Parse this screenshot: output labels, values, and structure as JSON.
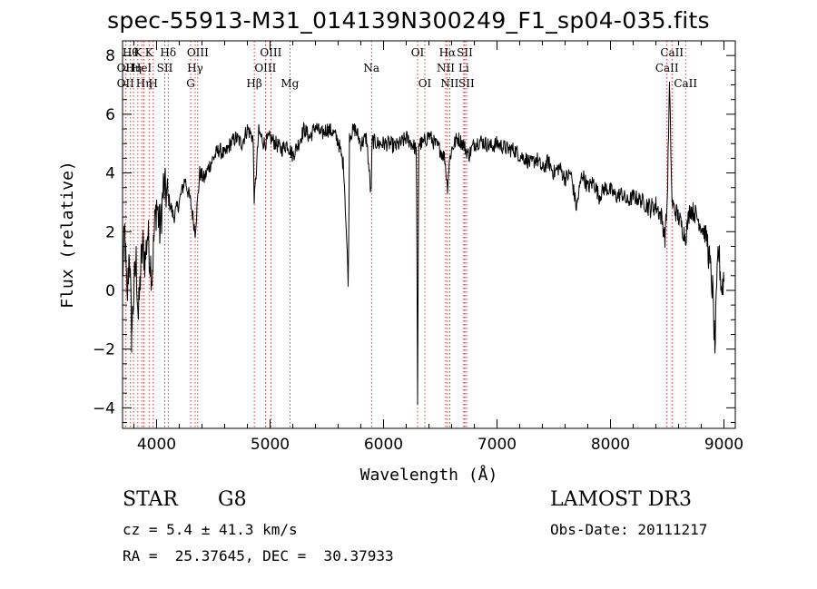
{
  "chart_data": {
    "type": "line",
    "title": "spec-55913-M31_014139N300249_F1_sp04-035.fits",
    "xlabel": "Wavelength (Å)",
    "ylabel": "Flux (relative)",
    "xlim": [
      3700,
      9100
    ],
    "ylim": [
      -4.7,
      8.5
    ],
    "xticks": [
      4000,
      5000,
      6000,
      7000,
      8000,
      9000
    ],
    "yticks": [
      -4,
      -2,
      0,
      2,
      4,
      6,
      8
    ],
    "grid": false,
    "line_color": "#000000",
    "marker_color": "#cc0000",
    "series": [
      {
        "x": [
          3700,
          3720,
          3740,
          3760,
          3780,
          3800,
          3820,
          3840,
          3860,
          3880,
          3900,
          3920,
          3940,
          3960,
          3980,
          4000,
          4030,
          4060,
          4100,
          4150,
          4200,
          4250,
          4300,
          4340,
          4380,
          4420,
          4460,
          4500,
          4550,
          4600,
          4650,
          4700,
          4750,
          4800,
          4850,
          4861,
          4900,
          4950,
          5000,
          5050,
          5100,
          5150,
          5200,
          5250,
          5300,
          5350,
          5400,
          5450,
          5500,
          5550,
          5600,
          5650,
          5690,
          5700,
          5750,
          5800,
          5850,
          5890,
          5900,
          5950,
          6000,
          6050,
          6100,
          6150,
          6200,
          6250,
          6290,
          6300,
          6310,
          6350,
          6400,
          6450,
          6500,
          6540,
          6563,
          6580,
          6600,
          6650,
          6700,
          6750,
          6800,
          6850,
          6900,
          6950,
          7000,
          7050,
          7100,
          7150,
          7200,
          7250,
          7300,
          7350,
          7400,
          7450,
          7500,
          7550,
          7600,
          7650,
          7700,
          7750,
          7800,
          7850,
          7900,
          7950,
          8000,
          8050,
          8100,
          8150,
          8200,
          8250,
          8300,
          8350,
          8400,
          8450,
          8480,
          8500,
          8520,
          8542,
          8560,
          8600,
          8662,
          8700,
          8750,
          8800,
          8850,
          8900,
          8920,
          8950,
          8980,
          9000
        ],
        "y": [
          0.5,
          2.0,
          -0.5,
          1.5,
          -1.5,
          0.0,
          1.0,
          -1.0,
          0.8,
          1.5,
          1.0,
          2.0,
          1.2,
          0.5,
          2.0,
          3.0,
          2.0,
          3.5,
          3.2,
          2.5,
          3.0,
          3.8,
          3.0,
          2.0,
          4.0,
          3.8,
          4.2,
          4.5,
          4.8,
          4.6,
          5.0,
          5.2,
          5.0,
          5.5,
          5.2,
          3.0,
          5.4,
          5.0,
          5.2,
          5.0,
          4.8,
          5.0,
          4.6,
          5.0,
          5.5,
          5.2,
          5.6,
          5.3,
          5.5,
          5.4,
          5.1,
          4.2,
          0.2,
          5.3,
          5.5,
          5.0,
          5.2,
          3.2,
          5.1,
          5.0,
          5.0,
          5.0,
          4.9,
          5.0,
          5.2,
          5.0,
          4.8,
          -3.9,
          5.0,
          5.0,
          5.3,
          5.0,
          4.8,
          4.5,
          3.5,
          4.4,
          4.8,
          5.2,
          5.0,
          4.6,
          5.0,
          5.1,
          5.0,
          4.9,
          5.0,
          4.9,
          4.8,
          4.8,
          4.6,
          4.5,
          4.3,
          4.5,
          4.1,
          4.4,
          4.0,
          4.2,
          3.8,
          4.0,
          2.8,
          4.0,
          3.5,
          3.7,
          3.2,
          3.5,
          3.4,
          3.2,
          3.3,
          3.0,
          3.2,
          3.1,
          3.0,
          2.8,
          2.9,
          2.5,
          1.8,
          3.0,
          7.0,
          3.0,
          2.8,
          2.5,
          1.8,
          2.8,
          2.6,
          2.2,
          1.8,
          0.0,
          -2.0,
          1.5,
          0.0,
          0.5
        ]
      }
    ],
    "lines": [
      {
        "x": 3726,
        "labels": [
          {
            "row": 2,
            "text": "OII"
          },
          {
            "row": 3,
            "text": "OII"
          }
        ]
      },
      {
        "x": 3770,
        "labels": [
          {
            "row": 1,
            "text": "Hθ"
          }
        ]
      },
      {
        "x": 3797,
        "labels": [
          {
            "row": 2,
            "text": "Hη"
          }
        ]
      },
      {
        "x": 3835,
        "labels": [
          {
            "row": 1,
            "text": "K"
          }
        ]
      },
      {
        "x": 3869,
        "labels": [
          {
            "row": 2,
            "text": "HeI"
          }
        ]
      },
      {
        "x": 3889,
        "labels": [
          {
            "row": 3,
            "text": "Hη"
          }
        ]
      },
      {
        "x": 3934,
        "labels": [
          {
            "row": 1,
            "text": "K"
          }
        ]
      },
      {
        "x": 3970,
        "labels": [
          {
            "row": 3,
            "text": "H"
          }
        ]
      },
      {
        "x": 4072,
        "labels": [
          {
            "row": 2,
            "text": "SII"
          }
        ]
      },
      {
        "x": 4102,
        "labels": [
          {
            "row": 1,
            "text": "Hδ"
          }
        ]
      },
      {
        "x": 4300,
        "labels": [
          {
            "row": 3,
            "text": "G"
          }
        ]
      },
      {
        "x": 4340,
        "labels": [
          {
            "row": 2,
            "text": "Hγ"
          }
        ]
      },
      {
        "x": 4363,
        "labels": [
          {
            "row": 1,
            "text": "OIII"
          }
        ]
      },
      {
        "x": 4861,
        "labels": [
          {
            "row": 3,
            "text": "Hβ"
          }
        ]
      },
      {
        "x": 4959,
        "labels": [
          {
            "row": 2,
            "text": "OIII"
          }
        ]
      },
      {
        "x": 5007,
        "labels": [
          {
            "row": 1,
            "text": "OIII"
          }
        ]
      },
      {
        "x": 5175,
        "labels": [
          {
            "row": 3,
            "text": "Mg"
          }
        ]
      },
      {
        "x": 5894,
        "labels": [
          {
            "row": 2,
            "text": "Na"
          }
        ]
      },
      {
        "x": 6300,
        "labels": [
          {
            "row": 1,
            "text": "OI"
          }
        ]
      },
      {
        "x": 6364,
        "labels": [
          {
            "row": 3,
            "text": "OI"
          }
        ]
      },
      {
        "x": 6548,
        "labels": [
          {
            "row": 2,
            "text": "NII"
          }
        ]
      },
      {
        "x": 6563,
        "labels": [
          {
            "row": 1,
            "text": "Hα"
          }
        ]
      },
      {
        "x": 6583,
        "labels": [
          {
            "row": 3,
            "text": "NII"
          }
        ]
      },
      {
        "x": 6707,
        "labels": [
          {
            "row": 2,
            "text": "Li"
          }
        ]
      },
      {
        "x": 6716,
        "labels": [
          {
            "row": 1,
            "text": "SII"
          }
        ]
      },
      {
        "x": 6731,
        "labels": [
          {
            "row": 3,
            "text": "SII"
          }
        ]
      },
      {
        "x": 8498,
        "labels": [
          {
            "row": 2,
            "text": "CaII"
          }
        ]
      },
      {
        "x": 8542,
        "labels": [
          {
            "row": 1,
            "text": "CaII"
          }
        ]
      },
      {
        "x": 8662,
        "labels": [
          {
            "row": 3,
            "text": "CaII"
          }
        ]
      }
    ]
  },
  "info": {
    "class": "STAR",
    "subclass": "G8",
    "survey": "LAMOST DR3",
    "cz": "cz = 5.4 ± 41.3 km/s",
    "obs_date": "Obs-Date: 20111217",
    "coords": "RA =  25.37645, DEC =  30.37933"
  }
}
